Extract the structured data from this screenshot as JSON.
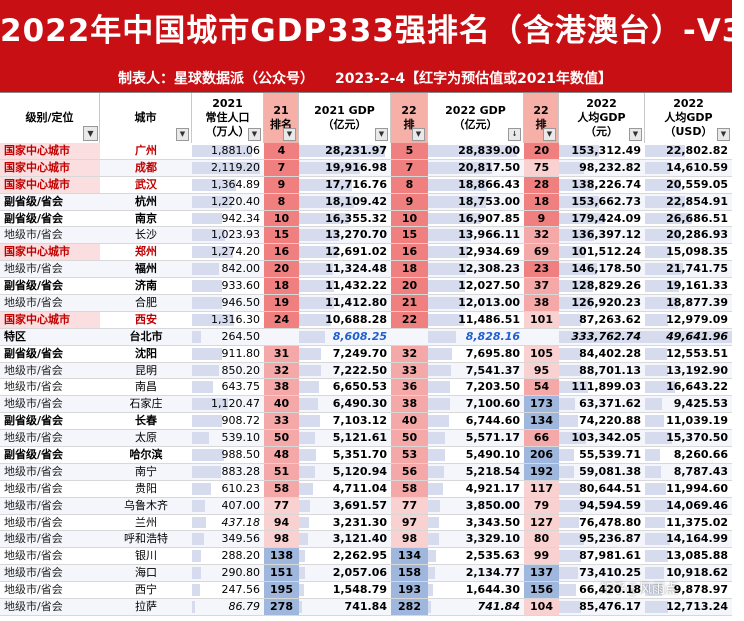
{
  "title": "2022年中国城市GDP333强排名（含港澳台）-V3",
  "subtitle": {
    "maker": "制表人：星球数据派（公众号）",
    "date_note": "2023-2-4【红字为预估值或2021年数值】"
  },
  "headers": {
    "level": "级别/定位",
    "city": "城市",
    "pop": [
      "2021",
      "常住人口",
      "（万人）"
    ],
    "r21": [
      "21",
      "排名"
    ],
    "g21": [
      "2021 GDP",
      "（亿元）"
    ],
    "r22": [
      "22",
      "排"
    ],
    "g22": [
      "2022 GDP",
      "（亿元）"
    ],
    "rpc": [
      "22",
      "排"
    ],
    "pc": [
      "2022",
      "人均GDP",
      "（元）"
    ],
    "usd": [
      "2022",
      "人均GDP",
      "（USD）"
    ]
  },
  "colors": {
    "header_red": "#c80f14",
    "rank_red": "#f08080",
    "rank_blue": "#9fb6dd"
  },
  "rows": [
    {
      "level": "国家中心城市",
      "lt": "nat",
      "city": "广州",
      "ct": "red",
      "pop": "1,881.06",
      "r21": "4",
      "g21": "28,231.97",
      "r22": "5",
      "g22": "28,839.00",
      "rpc": "20",
      "pc": "153,312.49",
      "usd": "22,802.82",
      "pop_pct": 0.84,
      "g21_pct": 0.93,
      "g22_pct": 0.93,
      "pc_pct": 0.46,
      "usd_pct": 0.46
    },
    {
      "level": "国家中心城市",
      "lt": "nat",
      "city": "成都",
      "ct": "red",
      "pop": "2,119.20",
      "r21": "7",
      "g21": "19,916.98",
      "r22": "7",
      "g22": "20,817.50",
      "rpc": "75",
      "pc": "98,232.82",
      "usd": "14,610.59",
      "pop_pct": 0.95,
      "g21_pct": 0.66,
      "g22_pct": 0.67,
      "pc_pct": 0.29,
      "usd_pct": 0.29
    },
    {
      "level": "国家中心城市",
      "lt": "nat",
      "city": "武汉",
      "ct": "red",
      "pop": "1,364.89",
      "r21": "9",
      "g21": "17,716.76",
      "r22": "8",
      "g22": "18,866.43",
      "rpc": "28",
      "pc": "138,226.74",
      "usd": "20,559.05",
      "pop_pct": 0.61,
      "g21_pct": 0.58,
      "g22_pct": 0.61,
      "pc_pct": 0.41,
      "usd_pct": 0.41
    },
    {
      "level": "副省级/省会",
      "lt": "sub",
      "city": "杭州",
      "ct": "bold",
      "pop": "1,220.40",
      "r21": "8",
      "g21": "18,109.42",
      "r22": "9",
      "g22": "18,753.00",
      "rpc": "18",
      "pc": "153,662.73",
      "usd": "22,854.91",
      "pop_pct": 0.55,
      "g21_pct": 0.6,
      "g22_pct": 0.6,
      "pc_pct": 0.46,
      "usd_pct": 0.46
    },
    {
      "level": "副省级/省会",
      "lt": "sub",
      "city": "南京",
      "ct": "bold",
      "pop": "942.34",
      "r21": "10",
      "g21": "16,355.32",
      "r22": "10",
      "g22": "16,907.85",
      "rpc": "9",
      "pc": "179,424.09",
      "usd": "26,686.51",
      "pop_pct": 0.42,
      "g21_pct": 0.54,
      "g22_pct": 0.55,
      "pc_pct": 0.54,
      "usd_pct": 0.54
    },
    {
      "level": "地级市/省会",
      "lt": "pre",
      "city": "长沙",
      "ct": "",
      "pop": "1,023.93",
      "r21": "15",
      "g21": "13,270.70",
      "r22": "15",
      "g22": "13,966.11",
      "rpc": "32",
      "pc": "136,397.12",
      "usd": "20,286.93",
      "pop_pct": 0.46,
      "g21_pct": 0.44,
      "g22_pct": 0.45,
      "pc_pct": 0.41,
      "usd_pct": 0.41
    },
    {
      "level": "国家中心城市",
      "lt": "nat",
      "city": "郑州",
      "ct": "red",
      "pop": "1,274.20",
      "r21": "16",
      "g21": "12,691.02",
      "r22": "16",
      "g22": "12,934.69",
      "rpc": "69",
      "pc": "101,512.24",
      "usd": "15,098.35",
      "pop_pct": 0.57,
      "g21_pct": 0.42,
      "g22_pct": 0.42,
      "pc_pct": 0.3,
      "usd_pct": 0.3
    },
    {
      "level": "地级市/省会",
      "lt": "pre",
      "city": "福州",
      "ct": "bold",
      "pop": "842.00",
      "r21": "20",
      "g21": "11,324.48",
      "r22": "18",
      "g22": "12,308.23",
      "rpc": "23",
      "pc": "146,178.50",
      "usd": "21,741.75",
      "pop_pct": 0.38,
      "g21_pct": 0.37,
      "g22_pct": 0.4,
      "pc_pct": 0.44,
      "usd_pct": 0.44
    },
    {
      "level": "副省级/省会",
      "lt": "sub",
      "city": "济南",
      "ct": "bold",
      "pop": "933.60",
      "r21": "18",
      "g21": "11,432.22",
      "r22": "20",
      "g22": "12,027.50",
      "rpc": "37",
      "pc": "128,829.26",
      "usd": "19,161.33",
      "pop_pct": 0.42,
      "g21_pct": 0.38,
      "g22_pct": 0.39,
      "pc_pct": 0.39,
      "usd_pct": 0.39
    },
    {
      "level": "地级市/省会",
      "lt": "pre",
      "city": "合肥",
      "ct": "",
      "pop": "946.50",
      "r21": "19",
      "g21": "11,412.80",
      "r22": "21",
      "g22": "12,013.00",
      "rpc": "38",
      "pc": "126,920.23",
      "usd": "18,877.39",
      "pop_pct": 0.42,
      "g21_pct": 0.38,
      "g22_pct": 0.39,
      "pc_pct": 0.38,
      "usd_pct": 0.38
    },
    {
      "level": "国家中心城市",
      "lt": "nat",
      "city": "西安",
      "ct": "red",
      "pop": "1,316.30",
      "r21": "24",
      "g21": "10,688.28",
      "r22": "22",
      "g22": "11,486.51",
      "rpc": "101",
      "pc": "87,263.62",
      "usd": "12,979.09",
      "pop_pct": 0.59,
      "g21_pct": 0.35,
      "g22_pct": 0.37,
      "pc_pct": 0.26,
      "usd_pct": 0.26
    },
    {
      "level": "特区",
      "lt": "sar",
      "city": "台北市",
      "ct": "bold",
      "pop": "264.50",
      "r21": "",
      "g21": "8,608.25",
      "r22": "",
      "g22": "8,828.16",
      "rpc": "",
      "pc": "333,762.74",
      "usd": "49,641.96",
      "pop_pct": 0.12,
      "g21_pct": 0.28,
      "g22_pct": 0.29,
      "pc_pct": 1.0,
      "usd_pct": 1.0,
      "g21_style": "blue-it",
      "g22_style": "blue-it",
      "pc_style": "black-it",
      "usd_style": "black-it"
    },
    {
      "level": "副省级/省会",
      "lt": "sub",
      "city": "沈阳",
      "ct": "bold",
      "pop": "911.80",
      "r21": "31",
      "g21": "7,249.70",
      "r22": "32",
      "g22": "7,695.80",
      "rpc": "105",
      "pc": "84,402.28",
      "usd": "12,553.51",
      "pop_pct": 0.41,
      "g21_pct": 0.24,
      "g22_pct": 0.25,
      "pc_pct": 0.25,
      "usd_pct": 0.25
    },
    {
      "level": "地级市/省会",
      "lt": "pre",
      "city": "昆明",
      "ct": "",
      "pop": "850.20",
      "r21": "32",
      "g21": "7,222.50",
      "r22": "33",
      "g22": "7,541.37",
      "rpc": "95",
      "pc": "88,701.13",
      "usd": "13,192.90",
      "pop_pct": 0.38,
      "g21_pct": 0.24,
      "g22_pct": 0.24,
      "pc_pct": 0.27,
      "usd_pct": 0.27
    },
    {
      "level": "地级市/省会",
      "lt": "pre",
      "city": "南昌",
      "ct": "",
      "pop": "643.75",
      "r21": "38",
      "g21": "6,650.53",
      "r22": "36",
      "g22": "7,203.50",
      "rpc": "54",
      "pc": "111,899.03",
      "usd": "16,643.22",
      "pop_pct": 0.29,
      "g21_pct": 0.22,
      "g22_pct": 0.23,
      "pc_pct": 0.34,
      "usd_pct": 0.34
    },
    {
      "level": "地级市/省会",
      "lt": "pre",
      "city": "石家庄",
      "ct": "",
      "pop": "1,120.47",
      "r21": "40",
      "g21": "6,490.30",
      "r22": "38",
      "g22": "7,100.60",
      "rpc": "173",
      "pc": "63,371.62",
      "usd": "9,425.53",
      "pop_pct": 0.5,
      "g21_pct": 0.21,
      "g22_pct": 0.23,
      "pc_pct": 0.19,
      "usd_pct": 0.19
    },
    {
      "level": "副省级/省会",
      "lt": "sub",
      "city": "长春",
      "ct": "bold",
      "pop": "908.72",
      "r21": "33",
      "g21": "7,103.12",
      "r22": "40",
      "g22": "6,744.60",
      "rpc": "134",
      "pc": "74,220.88",
      "usd": "11,039.19",
      "pop_pct": 0.41,
      "g21_pct": 0.23,
      "g22_pct": 0.22,
      "pc_pct": 0.22,
      "usd_pct": 0.22
    },
    {
      "level": "地级市/省会",
      "lt": "pre",
      "city": "太原",
      "ct": "",
      "pop": "539.10",
      "r21": "50",
      "g21": "5,121.61",
      "r22": "50",
      "g22": "5,571.17",
      "rpc": "66",
      "pc": "103,342.05",
      "usd": "15,370.50",
      "pop_pct": 0.24,
      "g21_pct": 0.17,
      "g22_pct": 0.18,
      "pc_pct": 0.31,
      "usd_pct": 0.31
    },
    {
      "level": "副省级/省会",
      "lt": "sub",
      "city": "哈尔滨",
      "ct": "bold",
      "pop": "988.50",
      "r21": "48",
      "g21": "5,351.70",
      "r22": "53",
      "g22": "5,490.10",
      "rpc": "206",
      "pc": "55,539.71",
      "usd": "8,260.66",
      "pop_pct": 0.44,
      "g21_pct": 0.18,
      "g22_pct": 0.18,
      "pc_pct": 0.17,
      "usd_pct": 0.17
    },
    {
      "level": "地级市/省会",
      "lt": "pre",
      "city": "南宁",
      "ct": "",
      "pop": "883.28",
      "r21": "51",
      "g21": "5,120.94",
      "r22": "56",
      "g22": "5,218.54",
      "rpc": "192",
      "pc": "59,081.38",
      "usd": "8,787.43",
      "pop_pct": 0.4,
      "g21_pct": 0.17,
      "g22_pct": 0.17,
      "pc_pct": 0.18,
      "usd_pct": 0.18
    },
    {
      "level": "地级市/省会",
      "lt": "pre",
      "city": "贵阳",
      "ct": "",
      "pop": "610.23",
      "r21": "58",
      "g21": "4,711.04",
      "r22": "58",
      "g22": "4,921.17",
      "rpc": "117",
      "pc": "80,644.51",
      "usd": "11,994.60",
      "pop_pct": 0.27,
      "g21_pct": 0.15,
      "g22_pct": 0.16,
      "pc_pct": 0.24,
      "usd_pct": 0.24
    },
    {
      "level": "地级市/省会",
      "lt": "pre",
      "city": "乌鲁木齐",
      "ct": "",
      "pop": "407.00",
      "r21": "77",
      "g21": "3,691.57",
      "r22": "77",
      "g22": "3,850.00",
      "rpc": "79",
      "pc": "94,594.59",
      "usd": "14,069.46",
      "pop_pct": 0.18,
      "g21_pct": 0.12,
      "g22_pct": 0.12,
      "pc_pct": 0.28,
      "usd_pct": 0.28
    },
    {
      "level": "地级市/省会",
      "lt": "pre",
      "city": "兰州",
      "ct": "",
      "pop": "437.18",
      "r21": "94",
      "g21": "3,231.30",
      "r22": "97",
      "g22": "3,343.50",
      "rpc": "127",
      "pc": "76,478.80",
      "usd": "11,375.02",
      "pop_pct": 0.2,
      "g21_pct": 0.11,
      "g22_pct": 0.11,
      "pc_pct": 0.23,
      "usd_pct": 0.23,
      "pop_style": "black-it"
    },
    {
      "level": "地级市/省会",
      "lt": "pre",
      "city": "呼和浩特",
      "ct": "",
      "pop": "349.56",
      "r21": "98",
      "g21": "3,121.40",
      "r22": "98",
      "g22": "3,329.10",
      "rpc": "80",
      "pc": "95,236.87",
      "usd": "14,164.99",
      "pop_pct": 0.16,
      "g21_pct": 0.1,
      "g22_pct": 0.11,
      "pc_pct": 0.29,
      "usd_pct": 0.29
    },
    {
      "level": "地级市/省会",
      "lt": "pre",
      "city": "银川",
      "ct": "",
      "pop": "288.20",
      "r21": "138",
      "g21": "2,262.95",
      "r22": "134",
      "g22": "2,535.63",
      "rpc": "99",
      "pc": "87,981.61",
      "usd": "13,085.88",
      "pop_pct": 0.13,
      "g21_pct": 0.07,
      "g22_pct": 0.08,
      "pc_pct": 0.26,
      "usd_pct": 0.26
    },
    {
      "level": "地级市/省会",
      "lt": "pre",
      "city": "海口",
      "ct": "",
      "pop": "290.80",
      "r21": "151",
      "g21": "2,057.06",
      "r22": "158",
      "g22": "2,134.77",
      "rpc": "137",
      "pc": "73,410.25",
      "usd": "10,918.62",
      "pop_pct": 0.13,
      "g21_pct": 0.07,
      "g22_pct": 0.07,
      "pc_pct": 0.22,
      "usd_pct": 0.22
    },
    {
      "level": "地级市/省会",
      "lt": "pre",
      "city": "西宁",
      "ct": "",
      "pop": "247.56",
      "r21": "195",
      "g21": "1,548.79",
      "r22": "193",
      "g22": "1,644.30",
      "rpc": "156",
      "pc": "66,420.18",
      "usd": "9,878.97",
      "pop_pct": 0.11,
      "g21_pct": 0.05,
      "g22_pct": 0.05,
      "pc_pct": 0.2,
      "usd_pct": 0.2
    },
    {
      "level": "地级市/省会",
      "lt": "pre",
      "city": "拉萨",
      "ct": "",
      "pop": "86.79",
      "r21": "278",
      "g21": "741.84",
      "r22": "282",
      "g22": "741.84",
      "rpc": "104",
      "pc": "85,476.17",
      "usd": "12,713.24",
      "pop_pct": 0.04,
      "g21_pct": 0.03,
      "g22_pct": 0.03,
      "pc_pct": 0.26,
      "usd_pct": 0.26,
      "pop_style": "black-it",
      "g22_style": "red-it"
    }
  ],
  "watermark": "知乎@风雨点"
}
